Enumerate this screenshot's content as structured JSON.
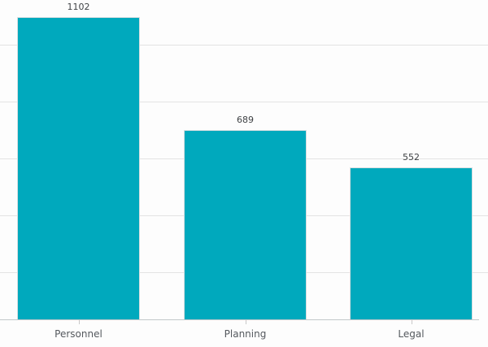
{
  "chart_data": {
    "type": "bar",
    "title": "",
    "xlabel": "",
    "ylabel": "",
    "categories": [
      "Personnel",
      "Planning",
      "Legal"
    ],
    "values": [
      1102,
      689,
      552
    ],
    "value_labels": [
      "1102",
      "689",
      "552"
    ],
    "ylim": [
      0,
      1168
    ],
    "gridline_values": [
      172,
      380,
      588,
      796,
      1004
    ],
    "grid": "horizontal-only",
    "legend": "none",
    "y_axis_tick_labels_visible": false,
    "colors": {
      "bar_fill": "#00a9bd",
      "bar_edge": "#d9dee0",
      "gridline": "#e3e3e3",
      "axis_line": "#c2c8ca",
      "tick": "#c8c8c8",
      "value_label_text": "#3f4245",
      "category_label_text": "#55595e",
      "background": "#fdfdfd"
    }
  }
}
